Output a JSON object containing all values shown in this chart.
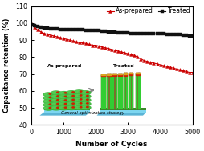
{
  "title": "",
  "xlabel": "Number of Cycles",
  "ylabel": "Capacitance retention (%)",
  "xlim": [
    0,
    5000
  ],
  "ylim": [
    40,
    110
  ],
  "yticks": [
    40,
    50,
    60,
    70,
    80,
    90,
    100,
    110
  ],
  "xticks": [
    0,
    1000,
    2000,
    3000,
    4000,
    5000
  ],
  "legend_labels": [
    "As-prepared",
    "Treated"
  ],
  "legend_colors": [
    "#cc0000",
    "#111111"
  ],
  "legend_markers": [
    "^",
    "s"
  ],
  "as_prepared_x": [
    0,
    100,
    200,
    300,
    400,
    500,
    600,
    700,
    800,
    900,
    1000,
    1100,
    1200,
    1300,
    1400,
    1500,
    1600,
    1700,
    1800,
    1900,
    2000,
    2100,
    2200,
    2300,
    2400,
    2500,
    2600,
    2700,
    2800,
    2900,
    3000,
    3100,
    3200,
    3300,
    3400,
    3500,
    3600,
    3700,
    3800,
    3900,
    4000,
    4100,
    4200,
    4300,
    4400,
    4500,
    4600,
    4700,
    4800,
    4900,
    5000
  ],
  "as_prepared_y": [
    100,
    97.5,
    96,
    95,
    94,
    93.5,
    93,
    92.5,
    92,
    91.5,
    91,
    90.5,
    90,
    89.5,
    89,
    88.5,
    88.5,
    88,
    87.5,
    87,
    87,
    86.5,
    86,
    85.5,
    85,
    84.5,
    84,
    83.5,
    83,
    82.5,
    82,
    81.5,
    81,
    80,
    79,
    78,
    77.5,
    77,
    76.5,
    76,
    75.5,
    75,
    74.5,
    74,
    73.5,
    73,
    72.5,
    72,
    71.5,
    71,
    71
  ],
  "treated_x": [
    0,
    100,
    200,
    300,
    400,
    500,
    600,
    700,
    800,
    900,
    1000,
    1100,
    1200,
    1300,
    1400,
    1500,
    1600,
    1700,
    1800,
    1900,
    2000,
    2100,
    2200,
    2300,
    2400,
    2500,
    2600,
    2700,
    2800,
    2900,
    3000,
    3100,
    3200,
    3300,
    3400,
    3500,
    3600,
    3700,
    3800,
    3900,
    4000,
    4100,
    4200,
    4300,
    4400,
    4500,
    4600,
    4700,
    4800,
    4900,
    5000
  ],
  "treated_y": [
    99,
    98.5,
    98,
    97.5,
    97.2,
    97,
    96.8,
    96.7,
    96.5,
    96.3,
    96.2,
    96,
    96,
    96,
    96,
    96,
    96,
    95.8,
    95.7,
    95.7,
    95.5,
    95.5,
    95.3,
    95.2,
    95,
    94.8,
    94.7,
    94.5,
    94.5,
    94.3,
    94.2,
    94,
    94,
    94,
    93.8,
    93.8,
    93.7,
    93.7,
    93.7,
    93.7,
    93.8,
    93.8,
    93.5,
    93.5,
    93.3,
    93.3,
    93.2,
    93,
    92.8,
    92.5,
    92.3
  ],
  "marker_size": 2.8,
  "line_width": 0.8,
  "inset_label_as": "As-prepared",
  "inset_label_treated": "Treated",
  "inset_arrow_label": "General optimization strategy"
}
